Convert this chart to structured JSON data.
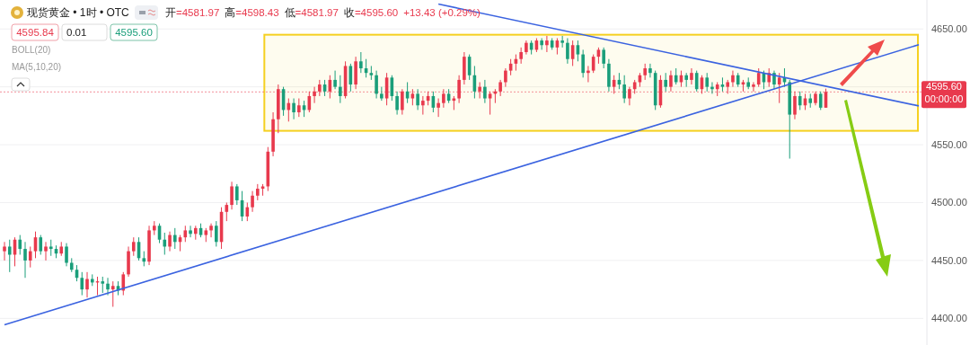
{
  "chart_data": {
    "type": "candlestick",
    "title": "现货黄金 • 1时 • OTC",
    "annotations": [
      "开=4581.97",
      "高=4598.43",
      "低=4581.97",
      "收=4595.60",
      "+13.43 (+0.29%)",
      "4595.84",
      "0.01",
      "4595.60",
      "BOLL(20)",
      "MA(5,10,20)",
      "00:00:00"
    ],
    "categories": [
      null,
      null,
      null,
      null,
      null,
      null,
      null,
      null,
      null,
      null,
      null,
      null,
      null,
      null,
      null,
      null,
      null,
      null,
      null,
      null,
      null,
      null,
      null,
      null,
      null,
      null,
      null,
      null,
      null,
      null,
      null,
      null,
      null,
      null,
      null,
      null,
      null,
      null,
      null,
      null,
      null,
      null,
      null,
      null,
      null,
      null,
      null,
      null,
      null,
      null,
      null,
      null,
      null,
      null,
      null,
      null,
      null,
      null,
      null,
      null,
      null,
      null,
      null,
      null,
      null,
      null,
      null,
      null,
      null,
      null,
      null,
      null,
      null,
      null,
      null,
      null,
      null,
      null,
      null,
      null,
      null,
      null,
      null,
      null,
      null,
      null,
      null,
      null,
      null,
      null,
      null,
      null,
      null,
      null,
      null,
      null,
      null,
      null,
      null,
      null,
      null,
      null,
      null,
      null,
      null,
      null,
      null,
      null,
      null,
      null,
      null,
      null,
      null,
      null,
      null,
      null,
      null,
      null,
      null,
      null,
      null,
      null,
      null,
      null,
      null,
      null,
      null,
      null,
      null,
      null,
      null,
      null,
      null,
      null,
      null,
      null,
      null,
      null,
      null,
      null,
      null,
      null,
      null,
      null,
      null,
      null,
      null,
      null,
      null,
      null,
      null,
      null,
      null,
      null,
      null,
      null,
      null,
      null,
      null,
      null,
      null,
      null,
      null,
      null,
      null,
      null,
      null,
      null,
      null,
      null,
      null,
      null,
      null,
      null,
      null,
      null,
      null,
      null
    ],
    "ohlc": [
      [
        4458,
        4466,
        4450,
        4462
      ],
      [
        4462,
        4468,
        4440,
        4455
      ],
      [
        4455,
        4470,
        4445,
        4468
      ],
      [
        4468,
        4472,
        4455,
        4460
      ],
      [
        4460,
        4466,
        4435,
        4450
      ],
      [
        4450,
        4462,
        4444,
        4458
      ],
      [
        4458,
        4475,
        4452,
        4470
      ],
      [
        4470,
        4472,
        4455,
        4458
      ],
      [
        4458,
        4466,
        4450,
        4462
      ],
      [
        4462,
        4468,
        4454,
        4460
      ],
      [
        4460,
        4463,
        4452,
        4456
      ],
      [
        4456,
        4466,
        4454,
        4462
      ],
      [
        4462,
        4465,
        4445,
        4448
      ],
      [
        4448,
        4452,
        4440,
        4442
      ],
      [
        4442,
        4446,
        4432,
        4435
      ],
      [
        4435,
        4440,
        4420,
        4425
      ],
      [
        4425,
        4440,
        4418,
        4434
      ],
      [
        4434,
        4438,
        4428,
        4431
      ],
      [
        4431,
        4436,
        4420,
        4432
      ],
      [
        4432,
        4436,
        4422,
        4430
      ],
      [
        4430,
        4435,
        4420,
        4425
      ],
      [
        4425,
        4432,
        4410,
        4428
      ],
      [
        4428,
        4432,
        4420,
        4424
      ],
      [
        4424,
        4440,
        4420,
        4438
      ],
      [
        4438,
        4462,
        4436,
        4458
      ],
      [
        4458,
        4470,
        4454,
        4466
      ],
      [
        4466,
        4470,
        4450,
        4452
      ],
      [
        4452,
        4458,
        4445,
        4449
      ],
      [
        4449,
        4480,
        4446,
        4476
      ],
      [
        4476,
        4484,
        4472,
        4480
      ],
      [
        4480,
        4482,
        4465,
        4468
      ],
      [
        4468,
        4474,
        4455,
        4462
      ],
      [
        4462,
        4475,
        4458,
        4472
      ],
      [
        4472,
        4478,
        4460,
        4466
      ],
      [
        4466,
        4472,
        4458,
        4470
      ],
      [
        4470,
        4480,
        4466,
        4476
      ],
      [
        4476,
        4480,
        4470,
        4473
      ],
      [
        4473,
        4480,
        4468,
        4478
      ],
      [
        4478,
        4482,
        4470,
        4472
      ],
      [
        4472,
        4478,
        4466,
        4476
      ],
      [
        4476,
        4482,
        4470,
        4480
      ],
      [
        4480,
        4484,
        4462,
        4466
      ],
      [
        4466,
        4496,
        4460,
        4492
      ],
      [
        4492,
        4500,
        4484,
        4498
      ],
      [
        4498,
        4518,
        4494,
        4514
      ],
      [
        4514,
        4516,
        4498,
        4502
      ],
      [
        4502,
        4510,
        4484,
        4488
      ],
      [
        4488,
        4500,
        4484,
        4496
      ],
      [
        4496,
        4510,
        4492,
        4506
      ],
      [
        4506,
        4516,
        4502,
        4512
      ],
      [
        4512,
        4516,
        4506,
        4514
      ],
      [
        4514,
        4548,
        4510,
        4544
      ],
      [
        4544,
        4578,
        4540,
        4572
      ],
      [
        4572,
        4602,
        4560,
        4598
      ],
      [
        4598,
        4600,
        4575,
        4580
      ],
      [
        4580,
        4590,
        4570,
        4586
      ],
      [
        4586,
        4590,
        4572,
        4578
      ],
      [
        4578,
        4590,
        4574,
        4584
      ],
      [
        4584,
        4588,
        4574,
        4580
      ],
      [
        4580,
        4596,
        4578,
        4592
      ],
      [
        4592,
        4600,
        4586,
        4596
      ],
      [
        4596,
        4606,
        4592,
        4602
      ],
      [
        4602,
        4606,
        4592,
        4596
      ],
      [
        4596,
        4610,
        4590,
        4606
      ],
      [
        4606,
        4614,
        4598,
        4600
      ],
      [
        4600,
        4610,
        4586,
        4592
      ],
      [
        4592,
        4622,
        4590,
        4618
      ],
      [
        4618,
        4620,
        4596,
        4602
      ],
      [
        4602,
        4626,
        4598,
        4622
      ],
      [
        4622,
        4630,
        4612,
        4616
      ],
      [
        4616,
        4624,
        4608,
        4612
      ],
      [
        4612,
        4618,
        4606,
        4610
      ],
      [
        4610,
        4614,
        4590,
        4594
      ],
      [
        4594,
        4600,
        4588,
        4590
      ],
      [
        4590,
        4612,
        4584,
        4608
      ],
      [
        4608,
        4610,
        4588,
        4592
      ],
      [
        4592,
        4596,
        4576,
        4580
      ],
      [
        4580,
        4598,
        4576,
        4596
      ],
      [
        4596,
        4604,
        4586,
        4590
      ],
      [
        4590,
        4598,
        4584,
        4594
      ],
      [
        4594,
        4598,
        4580,
        4584
      ],
      [
        4584,
        4592,
        4576,
        4588
      ],
      [
        4588,
        4596,
        4584,
        4592
      ],
      [
        4592,
        4596,
        4578,
        4582
      ],
      [
        4582,
        4590,
        4574,
        4586
      ],
      [
        4586,
        4598,
        4582,
        4594
      ],
      [
        4594,
        4598,
        4586,
        4588
      ],
      [
        4588,
        4592,
        4580,
        4590
      ],
      [
        4590,
        4610,
        4586,
        4606
      ],
      [
        4606,
        4630,
        4602,
        4626
      ],
      [
        4626,
        4628,
        4606,
        4610
      ],
      [
        4610,
        4618,
        4590,
        4596
      ],
      [
        4596,
        4604,
        4590,
        4600
      ],
      [
        4600,
        4606,
        4586,
        4590
      ],
      [
        4590,
        4596,
        4576,
        4594
      ],
      [
        4594,
        4598,
        4586,
        4596
      ],
      [
        4596,
        4606,
        4592,
        4604
      ],
      [
        4604,
        4616,
        4600,
        4614
      ],
      [
        4614,
        4624,
        4610,
        4620
      ],
      [
        4620,
        4628,
        4614,
        4624
      ],
      [
        4624,
        4634,
        4620,
        4630
      ],
      [
        4630,
        4640,
        4628,
        4638
      ],
      [
        4638,
        4640,
        4628,
        4632
      ],
      [
        4632,
        4642,
        4630,
        4640
      ],
      [
        4640,
        4642,
        4632,
        4636
      ],
      [
        4636,
        4644,
        4630,
        4640
      ],
      [
        4640,
        4642,
        4632,
        4634
      ],
      [
        4634,
        4642,
        4628,
        4640
      ],
      [
        4640,
        4644,
        4634,
        4638
      ],
      [
        4638,
        4642,
        4620,
        4624
      ],
      [
        4624,
        4640,
        4618,
        4636
      ],
      [
        4636,
        4640,
        4622,
        4628
      ],
      [
        4628,
        4632,
        4608,
        4612
      ],
      [
        4612,
        4618,
        4604,
        4614
      ],
      [
        4614,
        4628,
        4612,
        4626
      ],
      [
        4626,
        4634,
        4620,
        4632
      ],
      [
        4632,
        4634,
        4616,
        4620
      ],
      [
        4620,
        4624,
        4596,
        4600
      ],
      [
        4600,
        4610,
        4594,
        4606
      ],
      [
        4606,
        4612,
        4598,
        4602
      ],
      [
        4602,
        4610,
        4586,
        4590
      ],
      [
        4590,
        4600,
        4584,
        4598
      ],
      [
        4598,
        4606,
        4594,
        4604
      ],
      [
        4604,
        4612,
        4600,
        4610
      ],
      [
        4610,
        4620,
        4606,
        4616
      ],
      [
        4616,
        4620,
        4608,
        4612
      ],
      [
        4612,
        4614,
        4580,
        4584
      ],
      [
        4584,
        4610,
        4582,
        4606
      ],
      [
        4606,
        4612,
        4596,
        4600
      ],
      [
        4600,
        4614,
        4596,
        4610
      ],
      [
        4610,
        4616,
        4602,
        4604
      ],
      [
        4604,
        4614,
        4600,
        4610
      ],
      [
        4610,
        4612,
        4600,
        4606
      ],
      [
        4606,
        4616,
        4602,
        4612
      ],
      [
        4612,
        4614,
        4596,
        4598
      ],
      [
        4598,
        4610,
        4594,
        4608
      ],
      [
        4608,
        4612,
        4596,
        4600
      ],
      [
        4600,
        4604,
        4594,
        4598
      ],
      [
        4598,
        4604,
        4592,
        4602
      ],
      [
        4602,
        4608,
        4596,
        4600
      ],
      [
        4600,
        4606,
        4594,
        4604
      ],
      [
        4604,
        4614,
        4600,
        4610
      ],
      [
        4610,
        4612,
        4600,
        4602
      ],
      [
        4602,
        4606,
        4596,
        4604
      ],
      [
        4604,
        4608,
        4598,
        4600
      ],
      [
        4600,
        4604,
        4596,
        4602
      ],
      [
        4602,
        4616,
        4600,
        4612
      ],
      [
        4612,
        4614,
        4598,
        4604
      ],
      [
        4604,
        4616,
        4600,
        4612
      ],
      [
        4612,
        4614,
        4598,
        4602
      ],
      [
        4602,
        4612,
        4586,
        4608
      ],
      [
        4608,
        4616,
        4600,
        4604
      ],
      [
        4604,
        4606,
        4538,
        4576
      ],
      [
        4576,
        4596,
        4572,
        4592
      ],
      [
        4592,
        4596,
        4580,
        4584
      ],
      [
        4584,
        4594,
        4580,
        4590
      ],
      [
        4590,
        4594,
        4582,
        4586
      ],
      [
        4586,
        4596,
        4584,
        4594
      ],
      [
        4594,
        4596,
        4580,
        4582
      ],
      [
        4581.97,
        4598.43,
        4581.97,
        4595.6
      ],
      null,
      null,
      null,
      null,
      null,
      null,
      null,
      null,
      null,
      null,
      null,
      null,
      null,
      null,
      null,
      null,
      null,
      null
    ],
    "series": [
      {
        "type": "line",
        "color": "#3b63e0",
        "values": [
          4394.5,
          null,
          null,
          null,
          null,
          null,
          null,
          null,
          null,
          null,
          null,
          null,
          null,
          null,
          null,
          null,
          null,
          null,
          null,
          null,
          null,
          null,
          null,
          null,
          null,
          null,
          null,
          null,
          null,
          null,
          null,
          null,
          null,
          null,
          null,
          null,
          null,
          null,
          null,
          null,
          null,
          null,
          null,
          null,
          null,
          null,
          null,
          null,
          null,
          null,
          null,
          null,
          null,
          null,
          null,
          null,
          null,
          null,
          null,
          null,
          null,
          null,
          null,
          null,
          null,
          null,
          null,
          null,
          null,
          null,
          null,
          null,
          null,
          null,
          null,
          null,
          null,
          null,
          null,
          null,
          null,
          null,
          null,
          null,
          null,
          null,
          null,
          null,
          null,
          null,
          null,
          null,
          null,
          null,
          null,
          null,
          null,
          null,
          null,
          null,
          null,
          null,
          null,
          null,
          null,
          null,
          null,
          null,
          null,
          null,
          null,
          null,
          null,
          null,
          null,
          null,
          null,
          null,
          null,
          null,
          null,
          null,
          null,
          null,
          null,
          null,
          null,
          null,
          null,
          null,
          null,
          null,
          null,
          null,
          null,
          null,
          null,
          null,
          null,
          null,
          null,
          null,
          null,
          null,
          null,
          null,
          null,
          null,
          null,
          null,
          null,
          null,
          null,
          null,
          null,
          null,
          null,
          null,
          null,
          null,
          null,
          null,
          null,
          null,
          null,
          null,
          null,
          null,
          null,
          null,
          null,
          null,
          null,
          null,
          null,
          null,
          null,
          4636.4
        ]
      },
      {
        "type": "line",
        "color": "#3b63e0",
        "values": [
          null,
          null,
          null,
          null,
          null,
          null,
          null,
          null,
          null,
          null,
          null,
          null,
          null,
          null,
          null,
          null,
          null,
          null,
          null,
          null,
          null,
          null,
          null,
          null,
          null,
          null,
          null,
          null,
          null,
          null,
          null,
          null,
          null,
          null,
          null,
          null,
          null,
          null,
          null,
          null,
          null,
          null,
          null,
          null,
          null,
          null,
          null,
          null,
          null,
          null,
          null,
          null,
          null,
          null,
          null,
          null,
          null,
          null,
          null,
          null,
          null,
          null,
          null,
          null,
          null,
          null,
          null,
          null,
          null,
          null,
          null,
          null,
          null,
          null,
          null,
          null,
          null,
          null,
          null,
          null,
          null,
          null,
          null,
          null,
          4671.5,
          null,
          null,
          null,
          null,
          null,
          null,
          null,
          null,
          null,
          null,
          null,
          null,
          null,
          null,
          null,
          null,
          null,
          null,
          null,
          null,
          null,
          null,
          null,
          null,
          null,
          null,
          null,
          null,
          null,
          null,
          null,
          null,
          null,
          null,
          null,
          null,
          null,
          null,
          null,
          null,
          null,
          null,
          null,
          null,
          null,
          null,
          null,
          null,
          null,
          null,
          null,
          null,
          null,
          null,
          null,
          null,
          null,
          null,
          null,
          null,
          null,
          null,
          null,
          null,
          null,
          null,
          null,
          null,
          null,
          null,
          null,
          null,
          null,
          null,
          null,
          null,
          null,
          null,
          null,
          null,
          null,
          null,
          null,
          null,
          null,
          null,
          null,
          null,
          null,
          null,
          null,
          null,
          4583.5
        ]
      }
    ],
    "ref_lines": [
      {
        "axis": "y",
        "value": 4595.6,
        "label": "4595.60",
        "color": "#e8394d",
        "line_style": "dotted"
      }
    ],
    "bands": [
      {
        "axis": "y",
        "from": 4562,
        "to": 4645,
        "color": "#f5d020"
      }
    ],
    "ylim": [
      4377,
      4675
    ],
    "yticks": [
      {
        "value": 4400,
        "label": "4400.00"
      },
      {
        "value": 4450,
        "label": "4450.00"
      },
      {
        "value": 4500,
        "label": "4500.00"
      },
      {
        "value": 4550,
        "label": "4550.00"
      },
      {
        "value": 4600,
        "label": null
      },
      {
        "value": 4650,
        "label": "4650.00"
      }
    ],
    "grid": "y",
    "tick_labels": "y"
  }
}
